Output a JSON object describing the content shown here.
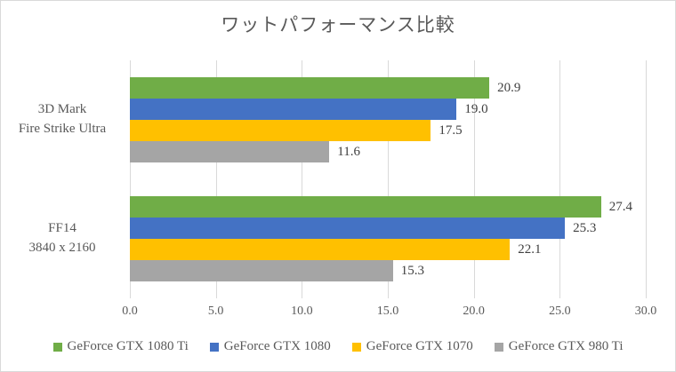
{
  "chart_data": {
    "type": "bar",
    "orientation": "horizontal",
    "title": "ワットパフォーマンス比較",
    "categories": [
      {
        "lines": [
          "3D Mark",
          "Fire Strike Ultra"
        ]
      },
      {
        "lines": [
          "FF14",
          "3840 x 2160"
        ]
      }
    ],
    "series": [
      {
        "name": "GeForce GTX 1080 Ti",
        "color": "#70AD47",
        "values": [
          20.9,
          27.4
        ]
      },
      {
        "name": "GeForce GTX 1080",
        "color": "#4472C4",
        "values": [
          19.0,
          25.3
        ]
      },
      {
        "name": "GeForce GTX 1070",
        "color": "#FFC000",
        "values": [
          17.5,
          22.1
        ]
      },
      {
        "name": "GeForce GTX 980 Ti",
        "color": "#A5A5A5",
        "values": [
          11.6,
          15.3
        ]
      }
    ],
    "xlim": [
      0,
      30
    ],
    "x_ticks": [
      "0.0",
      "5.0",
      "10.0",
      "15.0",
      "20.0",
      "25.0",
      "30.0"
    ],
    "data_labels_shown": true,
    "data_label_decimals": 1,
    "gridlines": true,
    "legend_position": "bottom",
    "colors": {
      "gridline": "#d9d9d9",
      "frame_border": "#d9d9d9",
      "axis_text": "#595959",
      "data_label_text": "#404040",
      "background": "#ffffff"
    }
  }
}
